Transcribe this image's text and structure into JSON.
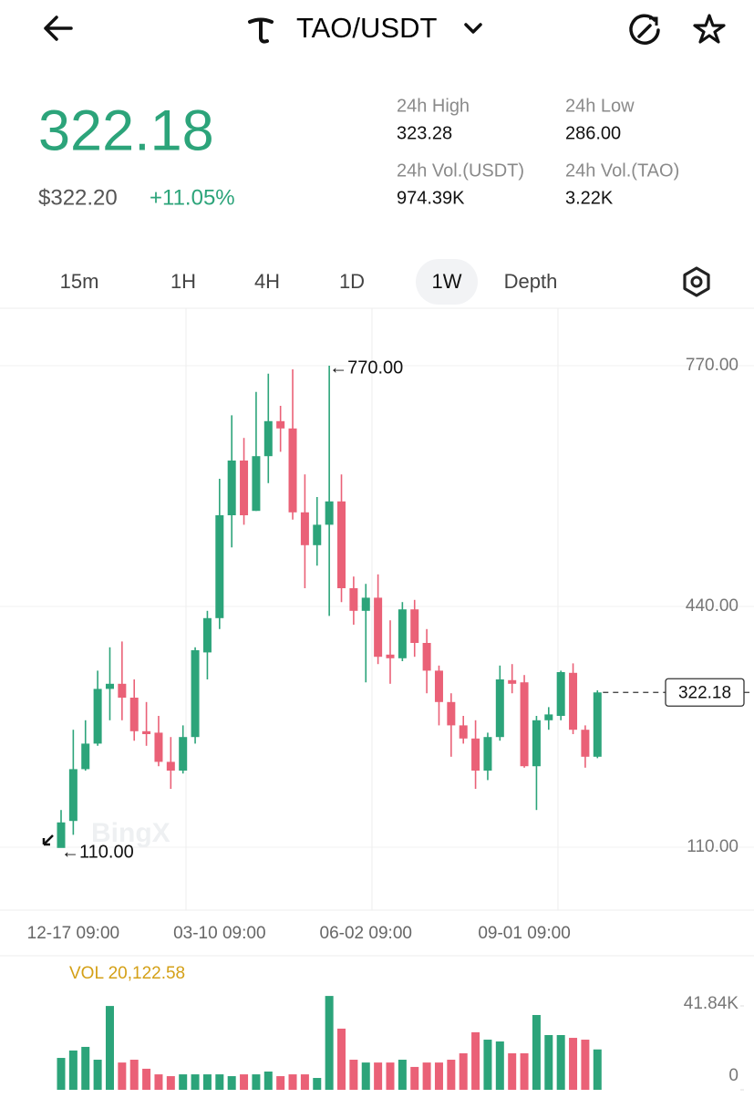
{
  "header": {
    "title": "TAO/USDT"
  },
  "ticker": {
    "price": "322.18",
    "usd_price": "$322.20",
    "change": "+11.05%",
    "stats": [
      {
        "label": "24h High",
        "value": "323.28"
      },
      {
        "label": "24h Low",
        "value": "286.00"
      },
      {
        "label": "24h Vol.(USDT)",
        "value": "974.39K"
      },
      {
        "label": "24h Vol.(TAO)",
        "value": "3.22K"
      }
    ]
  },
  "tabs": {
    "items": [
      "15m",
      "1H",
      "4H",
      "1D",
      "1W",
      "Depth"
    ],
    "active": "1W"
  },
  "chart_data": {
    "type": "candlestick",
    "watermark": "BingX",
    "categories": [
      null,
      "12-17 09:00",
      null,
      null,
      null,
      null,
      null,
      null,
      null,
      null,
      null,
      null,
      null,
      "03-10 09:00",
      null,
      null,
      null,
      null,
      null,
      null,
      null,
      null,
      null,
      null,
      null,
      "06-02 09:00",
      null,
      null,
      null,
      null,
      null,
      null,
      null,
      null,
      null,
      null,
      null,
      null,
      "09-01 09:00",
      null,
      null,
      null,
      null,
      null,
      null
    ],
    "open": [
      109,
      146,
      217,
      252,
      327,
      334,
      315,
      269,
      267,
      227,
      215,
      261,
      377,
      424,
      565,
      640,
      571,
      646,
      694,
      684,
      569,
      524,
      552,
      584,
      465,
      434,
      452,
      374,
      369,
      436,
      390,
      352,
      309,
      277,
      259,
      215,
      261,
      339,
      336,
      221,
      284,
      290,
      349,
      271,
      234
    ],
    "high": [
      161,
      271,
      284,
      352,
      384,
      392,
      340,
      309,
      290,
      261,
      277,
      384,
      434,
      615,
      702,
      671,
      734,
      759,
      715,
      765,
      621,
      590,
      770,
      621,
      481,
      471,
      484,
      421,
      446,
      449,
      409,
      359,
      321,
      290,
      284,
      267,
      359,
      361,
      346,
      290,
      302,
      352,
      362,
      277,
      325
    ],
    "low": [
      110,
      127,
      215,
      249,
      284,
      284,
      256,
      249,
      221,
      190,
      211,
      252,
      340,
      409,
      521,
      552,
      571,
      609,
      652,
      559,
      465,
      496,
      427,
      446,
      415,
      336,
      361,
      334,
      365,
      371,
      321,
      277,
      234,
      252,
      190,
      202,
      256,
      321,
      219,
      161,
      271,
      284,
      265,
      219,
      232
    ],
    "close": [
      144,
      217,
      252,
      327,
      334,
      315,
      269,
      265,
      227,
      215,
      261,
      380,
      424,
      565,
      640,
      565,
      646,
      694,
      684,
      569,
      524,
      552,
      584,
      465,
      434,
      452,
      371,
      369,
      436,
      390,
      352,
      309,
      277,
      259,
      215,
      261,
      340,
      334,
      221,
      284,
      292,
      350,
      271,
      234,
      322.18
    ],
    "up_color": "#2ca47a",
    "down_color": "#ea6177",
    "ylim": [
      23.75,
      846.25
    ],
    "yticks": [
      {
        "value": 770,
        "label": "770.00"
      },
      {
        "value": 440,
        "label": "440.00"
      },
      {
        "value": 110,
        "label": "110.00"
      }
    ],
    "high_label": "←770.00",
    "low_label": "←110.00",
    "volume": {
      "label": "VOL 20,122.58",
      "values": [
        15900,
        19600,
        21400,
        15000,
        41800,
        13600,
        15000,
        10500,
        7700,
        6800,
        7700,
        7700,
        7700,
        7700,
        6800,
        7700,
        7700,
        9100,
        6800,
        7700,
        7700,
        5900,
        46800,
        30500,
        15000,
        13600,
        13600,
        13600,
        15000,
        11400,
        13600,
        13600,
        15000,
        18200,
        28700,
        25000,
        24100,
        18200,
        18200,
        37300,
        27300,
        27300,
        25900,
        25000,
        20122.58
      ],
      "ylim": [
        0,
        61400
      ],
      "yticks": [
        {
          "value": 41840,
          "label": "41.84K"
        },
        0
      ]
    }
  }
}
